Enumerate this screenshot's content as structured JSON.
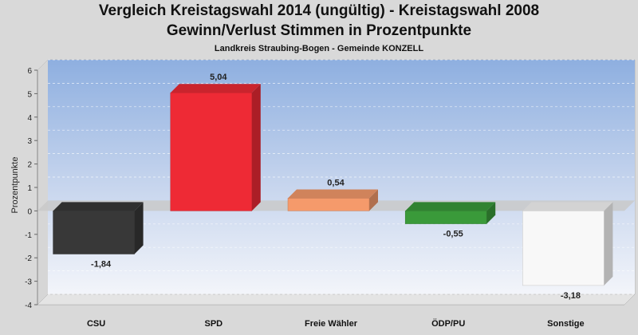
{
  "header": {
    "title_line1": "Vergleich Kreistagswahl 2014 (ungültig) - Kreistagswahl 2008",
    "title_line2": "Gewinn/Verlust Stimmen in Prozentpunkte",
    "subtitle": "Landkreis Straubing-Bogen - Gemeinde KONZELL"
  },
  "chart_data": {
    "type": "bar",
    "title": "Vergleich Kreistagswahl 2014 (ungültig) - Kreistagswahl 2008",
    "subtitle": "Gewinn/Verlust Stimmen in Prozentpunkte",
    "caption": "Landkreis Straubing-Bogen - Gemeinde KONZELL",
    "xlabel": "",
    "ylabel": "Prozentpunkte",
    "ylim": [
      -4,
      6
    ],
    "yticks": [
      -4,
      -3,
      -2,
      -1,
      0,
      1,
      2,
      3,
      4,
      5,
      6
    ],
    "categories": [
      "CSU",
      "SPD",
      "Freie Wähler",
      "ÖDP/PU",
      "Sonstige"
    ],
    "values": [
      -1.84,
      5.04,
      0.54,
      -0.55,
      -3.18
    ],
    "value_labels": [
      "-1,84",
      "5,04",
      "0,54",
      "-0,55",
      "-3,18"
    ],
    "colors": [
      "#383838",
      "#ee2a35",
      "#f59a6b",
      "#3a9a3a",
      "#f8f8f8"
    ],
    "grid": true,
    "legend": "none"
  }
}
